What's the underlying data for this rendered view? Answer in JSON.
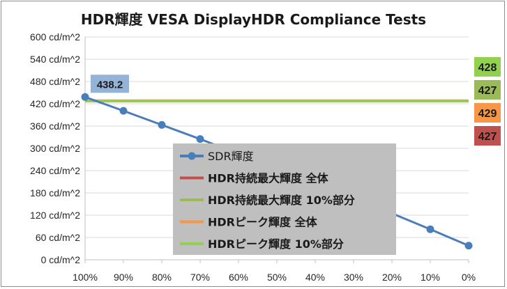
{
  "chart_data": {
    "type": "line",
    "title": "HDR輝度 VESA DisplayHDR Compliance Tests",
    "xlabel": "",
    "ylabel": "",
    "categories": [
      "100%",
      "90%",
      "80%",
      "70%",
      "60%",
      "50%",
      "40%",
      "30%",
      "20%",
      "10%",
      "0%"
    ],
    "y_ticks": [
      "0 cd/m^2",
      "60 cd/m^2",
      "120 cd/m^2",
      "180 cd/m^2",
      "240 cd/m^2",
      "300 cd/m^2",
      "360 cd/m^2",
      "420 cd/m^2",
      "480 cd/m^2",
      "540 cd/m^2",
      "600 cd/m^2"
    ],
    "ylim": [
      0,
      600
    ],
    "grid": "horizontal",
    "series": [
      {
        "name": "SDR輝度",
        "color": "#4a7ebb",
        "values": [
          438.2,
          401,
          363,
          325,
          285,
          245,
          205,
          165,
          125,
          82,
          38
        ],
        "marker": "circle"
      },
      {
        "name": "HDR持続最大輝度 全体",
        "color": "#c0504d",
        "values": [
          427,
          427,
          427,
          427,
          427,
          427,
          427,
          427,
          427,
          427,
          427
        ]
      },
      {
        "name": "HDR持続最大輝度 10%部分",
        "color": "#9bbb59",
        "values": [
          427,
          427,
          427,
          427,
          427,
          427,
          427,
          427,
          427,
          427,
          427
        ]
      },
      {
        "name": "HDRピーク輝度 全体",
        "color": "#f79646",
        "values": [
          429,
          429,
          429,
          429,
          429,
          429,
          429,
          429,
          429,
          429,
          429
        ]
      },
      {
        "name": "HDRピーク輝度 10%部分",
        "color": "#92d050",
        "values": [
          428,
          428,
          428,
          428,
          428,
          428,
          428,
          428,
          428,
          428,
          428
        ]
      }
    ],
    "data_labels": [
      {
        "text": "438.2",
        "bg": "#95b3d7"
      }
    ],
    "side_labels": [
      {
        "text": "428",
        "bg": "#92d050"
      },
      {
        "text": "427",
        "bg": "#9bbb59"
      },
      {
        "text": "429",
        "bg": "#f79646"
      },
      {
        "text": "427",
        "bg": "#c0504d"
      }
    ],
    "legend_placement": "center",
    "legend_bg": "#bfbfbf"
  }
}
